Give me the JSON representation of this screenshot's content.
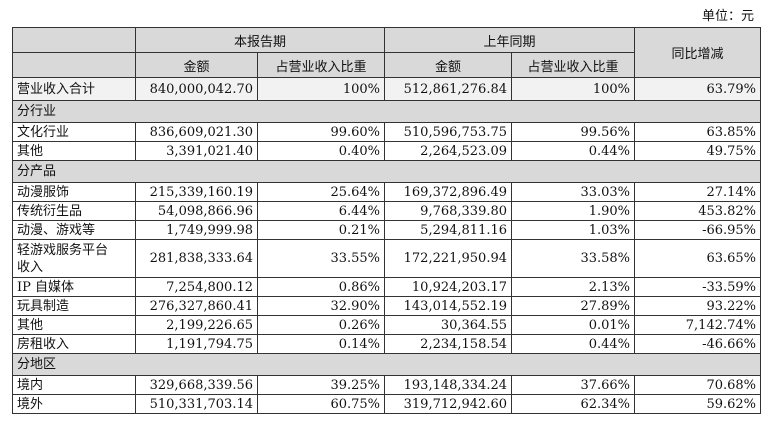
{
  "unit": "单位：元",
  "table": {
    "header": {
      "period": "本报告期",
      "prior": "上年同期",
      "yoy": "同比增减",
      "amount_cur": "金额",
      "ratio_cur": "占营业收入比重",
      "amount_prior": "金额",
      "ratio_prior": "占营业收入比重"
    },
    "rows": [
      [
        "营业收入合计",
        "840,000,042.70",
        "100%",
        "512,861,276.84",
        "100%",
        "63.79%"
      ],
      [
        "分行业"
      ],
      [
        "文化行业",
        "836,609,021.30",
        "99.60%",
        "510,596,753.75",
        "99.56%",
        "63.85%"
      ],
      [
        "其他",
        "3,391,021.40",
        "0.40%",
        "2,264,523.09",
        "0.44%",
        "49.75%"
      ],
      [
        "分产品"
      ],
      [
        "动漫服饰",
        "215,339,160.19",
        "25.64%",
        "169,372,896.49",
        "33.03%",
        "27.14%"
      ],
      [
        "传统衍生品",
        "54,098,866.96",
        "6.44%",
        "9,768,339.80",
        "1.90%",
        "453.82%"
      ],
      [
        "动漫、游戏等",
        "1,749,999.98",
        "0.21%",
        "5,294,811.16",
        "1.03%",
        "-66.95%"
      ],
      [
        "轻游戏服务平台收入",
        "281,838,333.64",
        "33.55%",
        "172,221,950.94",
        "33.58%",
        "63.65%"
      ],
      [
        "IP 自媒体",
        "7,254,800.12",
        "0.86%",
        "10,924,203.17",
        "2.13%",
        "-33.59%"
      ],
      [
        "玩具制造",
        "276,327,860.41",
        "32.90%",
        "143,014,552.19",
        "27.89%",
        "93.22%"
      ],
      [
        "其他",
        "2,199,226.65",
        "0.26%",
        "30,364.55",
        "0.01%",
        "7,142.74%"
      ],
      [
        "房租收入",
        "1,191,794.75",
        "0.14%",
        "2,234,158.54",
        "0.44%",
        "-46.66%"
      ],
      [
        "分地区"
      ],
      [
        "境内",
        "329,668,339.56",
        "39.25%",
        "193,148,334.24",
        "37.66%",
        "70.68%"
      ],
      [
        "境外",
        "510,331,703.14",
        "60.75%",
        "319,712,942.60",
        "62.34%",
        "59.62%"
      ]
    ]
  }
}
